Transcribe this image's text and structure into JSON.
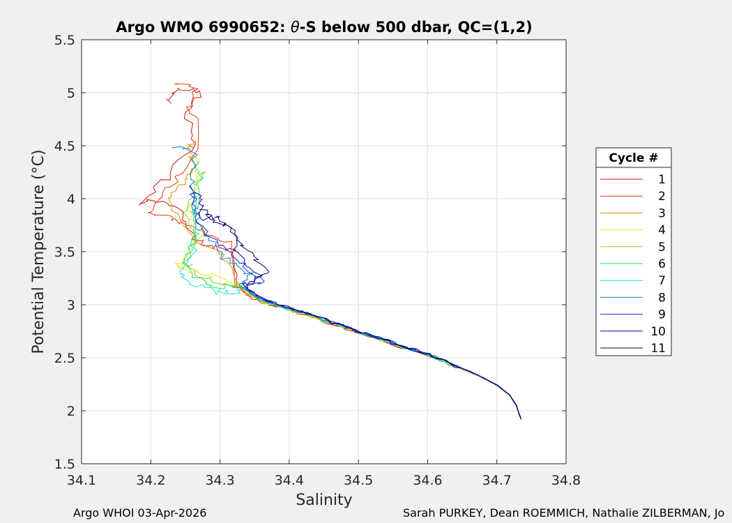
{
  "figure": {
    "footer_left": "Argo WHOI 03-Apr-2026",
    "footer_right": "Sarah PURKEY, Dean ROEMMICH, Nathalie ZILBERMAN, Jo"
  },
  "chart_data": {
    "type": "line",
    "title_prefix": "Argo WMO 6990652: ",
    "title_symbol": "θ",
    "title_suffix": "-S below 500 dbar,  QC=(1,2)",
    "xlabel": "Salinity",
    "ylabel": "Potential Temperature (°C)",
    "xlim": [
      34.1,
      34.8
    ],
    "ylim": [
      1.5,
      5.5
    ],
    "xticks": [
      34.1,
      34.2,
      34.3,
      34.4,
      34.5,
      34.6,
      34.7,
      34.8
    ],
    "xtick_labels": [
      "34.1",
      "34.2",
      "34.3",
      "34.4",
      "34.5",
      "34.6",
      "34.7",
      "34.8"
    ],
    "yticks": [
      1.5,
      2,
      2.5,
      3,
      3.5,
      4,
      4.5,
      5,
      5.5
    ],
    "ytick_labels": [
      "1.5",
      "2",
      "2.5",
      "3",
      "3.5",
      "4",
      "4.5",
      "5",
      "5.5"
    ],
    "grid": true,
    "legend_title": "Cycle #",
    "legend_location": "east-outside",
    "common_deep_curve": [
      [
        34.735,
        1.92
      ],
      [
        34.728,
        2.05
      ],
      [
        34.718,
        2.15
      ],
      [
        34.7,
        2.24
      ],
      [
        34.68,
        2.31
      ],
      [
        34.66,
        2.37
      ],
      [
        34.64,
        2.42
      ],
      [
        34.62,
        2.48
      ],
      [
        34.6,
        2.53
      ],
      [
        34.58,
        2.57
      ],
      [
        34.56,
        2.61
      ],
      [
        34.54,
        2.66
      ],
      [
        34.52,
        2.7
      ],
      [
        34.5,
        2.74
      ],
      [
        34.48,
        2.79
      ],
      [
        34.46,
        2.83
      ],
      [
        34.44,
        2.88
      ],
      [
        34.42,
        2.92
      ],
      [
        34.4,
        2.96
      ],
      [
        34.38,
        3.0
      ],
      [
        34.36,
        3.04
      ],
      [
        34.345,
        3.1
      ],
      [
        34.33,
        3.18
      ]
    ],
    "series": [
      {
        "name": "1",
        "color": "#d10f0f",
        "upper": [
          [
            34.33,
            3.18
          ],
          [
            34.33,
            3.5
          ],
          [
            34.3,
            3.55
          ],
          [
            34.27,
            3.62
          ],
          [
            34.25,
            3.9
          ],
          [
            34.21,
            4.0
          ],
          [
            34.19,
            3.95
          ],
          [
            34.23,
            4.2
          ],
          [
            34.27,
            4.5
          ],
          [
            34.26,
            4.8
          ],
          [
            34.28,
            5.0
          ],
          [
            34.25,
            5.05
          ],
          [
            34.23,
            4.9
          ]
        ]
      },
      {
        "name": "2",
        "color": "#e63a00",
        "upper": [
          [
            34.33,
            3.2
          ],
          [
            34.32,
            3.58
          ],
          [
            34.29,
            3.65
          ],
          [
            34.26,
            3.75
          ],
          [
            34.23,
            3.85
          ],
          [
            34.2,
            3.85
          ],
          [
            34.22,
            4.05
          ],
          [
            34.26,
            4.3
          ],
          [
            34.28,
            4.68
          ],
          [
            34.26,
            4.85
          ],
          [
            34.27,
            5.05
          ],
          [
            34.24,
            5.08
          ]
        ]
      },
      {
        "name": "3",
        "color": "#e08a00",
        "upper": [
          [
            34.33,
            3.22
          ],
          [
            34.31,
            3.45
          ],
          [
            34.28,
            3.55
          ],
          [
            34.26,
            3.7
          ],
          [
            34.23,
            4.0
          ],
          [
            34.25,
            4.15
          ],
          [
            34.27,
            4.25
          ],
          [
            34.26,
            4.45
          ],
          [
            34.265,
            4.55
          ]
        ]
      },
      {
        "name": "4",
        "color": "#f0e800",
        "upper": [
          [
            34.34,
            3.12
          ],
          [
            34.31,
            3.25
          ],
          [
            34.27,
            3.3
          ],
          [
            34.24,
            3.35
          ],
          [
            34.26,
            3.5
          ],
          [
            34.28,
            3.7
          ],
          [
            34.26,
            3.85
          ],
          [
            34.27,
            4.1
          ],
          [
            34.265,
            4.4
          ]
        ]
      },
      {
        "name": "5",
        "color": "#7ed321",
        "upper": [
          [
            34.33,
            3.14
          ],
          [
            34.3,
            3.2
          ],
          [
            34.27,
            3.3
          ],
          [
            34.25,
            3.4
          ],
          [
            34.27,
            3.6
          ],
          [
            34.25,
            3.9
          ],
          [
            34.27,
            4.2
          ],
          [
            34.28,
            4.25
          ]
        ]
      },
      {
        "name": "6",
        "color": "#1fe05a",
        "upper": [
          [
            34.32,
            3.1
          ],
          [
            34.29,
            3.17
          ],
          [
            34.26,
            3.28
          ],
          [
            34.245,
            3.42
          ],
          [
            34.265,
            3.6
          ],
          [
            34.26,
            3.85
          ],
          [
            34.27,
            4.1
          ],
          [
            34.27,
            4.35
          ]
        ]
      },
      {
        "name": "7",
        "color": "#16e0d8",
        "upper": [
          [
            34.35,
            3.02
          ],
          [
            34.32,
            3.12
          ],
          [
            34.29,
            3.12
          ],
          [
            34.25,
            3.22
          ],
          [
            34.24,
            3.3
          ],
          [
            34.26,
            3.5
          ],
          [
            34.265,
            3.8
          ],
          [
            34.26,
            4.05
          ]
        ]
      },
      {
        "name": "8",
        "color": "#0a7fd8",
        "upper": [
          [
            34.37,
            3.12
          ],
          [
            34.34,
            3.28
          ],
          [
            34.31,
            3.4
          ],
          [
            34.29,
            3.55
          ],
          [
            34.27,
            3.7
          ],
          [
            34.26,
            3.95
          ],
          [
            34.255,
            4.15
          ],
          [
            34.26,
            4.45
          ],
          [
            34.23,
            4.48
          ]
        ]
      },
      {
        "name": "9",
        "color": "#0828d0",
        "upper": [
          [
            34.39,
            3.08
          ],
          [
            34.36,
            3.22
          ],
          [
            34.33,
            3.35
          ],
          [
            34.31,
            3.5
          ],
          [
            34.28,
            3.62
          ],
          [
            34.265,
            3.78
          ],
          [
            34.26,
            3.98
          ],
          [
            34.255,
            4.12
          ]
        ]
      },
      {
        "name": "10",
        "color": "#0000a8",
        "upper": [
          [
            34.38,
            3.15
          ],
          [
            34.35,
            3.28
          ],
          [
            34.32,
            3.48
          ],
          [
            34.31,
            3.72
          ],
          [
            34.29,
            3.85
          ],
          [
            34.27,
            3.8
          ],
          [
            34.265,
            3.95
          ],
          [
            34.26,
            4.05
          ]
        ]
      },
      {
        "name": "11",
        "color": "#000060",
        "upper": [
          [
            34.38,
            3.2
          ],
          [
            34.36,
            3.32
          ],
          [
            34.34,
            3.45
          ],
          [
            34.32,
            3.6
          ],
          [
            34.3,
            3.75
          ],
          [
            34.28,
            3.82
          ],
          [
            34.27,
            3.9
          ]
        ]
      }
    ]
  }
}
